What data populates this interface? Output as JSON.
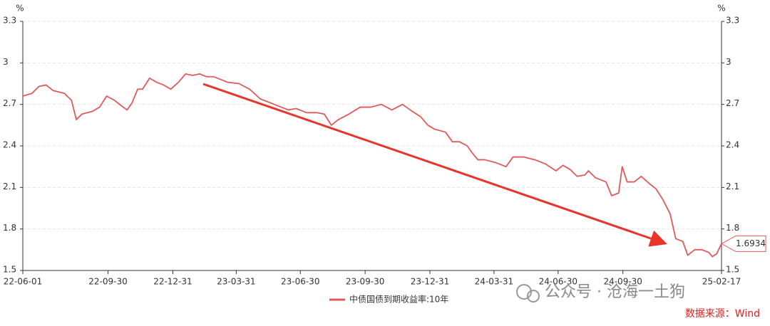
{
  "chart_data": {
    "type": "line",
    "y_unit": "%",
    "y2_unit": "%",
    "x": [
      "22-06-01",
      "22-06-14",
      "22-06-24",
      "22-07-04",
      "22-07-14",
      "22-07-30",
      "22-08-09",
      "22-08-16",
      "22-08-24",
      "22-09-08",
      "22-09-18",
      "22-09-28",
      "22-10-09",
      "22-10-19",
      "22-10-27",
      "22-11-03",
      "22-11-11",
      "22-11-18",
      "22-11-28",
      "22-12-08",
      "22-12-18",
      "22-12-28",
      "23-01-08",
      "23-01-18",
      "23-01-28",
      "23-02-07",
      "23-02-17",
      "23-02-27",
      "23-03-09",
      "23-03-19",
      "23-04-04",
      "23-04-19",
      "23-05-04",
      "23-05-19",
      "23-06-03",
      "23-06-13",
      "23-06-24",
      "23-07-09",
      "23-07-24",
      "23-08-03",
      "23-08-13",
      "23-08-23",
      "23-09-07",
      "23-09-23",
      "23-10-08",
      "23-10-23",
      "23-11-07",
      "23-11-22",
      "23-12-03",
      "23-12-18",
      "23-12-28",
      "24-01-07",
      "24-01-22",
      "24-02-01",
      "24-02-11",
      "24-02-22",
      "24-02-29",
      "24-03-08",
      "24-03-18",
      "24-04-02",
      "24-04-17",
      "24-04-27",
      "24-05-12",
      "24-05-28",
      "24-06-12",
      "24-06-27",
      "24-07-07",
      "24-07-17",
      "24-07-27",
      "24-08-07",
      "24-08-12",
      "24-08-22",
      "24-09-06",
      "24-09-14",
      "24-09-24",
      "24-09-29",
      "24-10-06",
      "24-10-16",
      "24-10-26",
      "24-11-06",
      "24-11-16",
      "24-11-26",
      "24-12-06",
      "24-12-14",
      "24-12-24",
      "24-12-31",
      "25-01-10",
      "25-01-20",
      "25-01-30",
      "25-02-04",
      "25-02-10",
      "25-02-17"
    ],
    "series": [
      {
        "name": "中债国债到期收益率:10年",
        "color": "#e05a5a",
        "values": [
          2.76,
          2.78,
          2.83,
          2.84,
          2.8,
          2.78,
          2.73,
          2.59,
          2.63,
          2.65,
          2.68,
          2.76,
          2.73,
          2.69,
          2.66,
          2.71,
          2.81,
          2.81,
          2.89,
          2.86,
          2.84,
          2.81,
          2.86,
          2.92,
          2.91,
          2.92,
          2.9,
          2.9,
          2.88,
          2.86,
          2.85,
          2.81,
          2.74,
          2.71,
          2.68,
          2.66,
          2.67,
          2.64,
          2.64,
          2.63,
          2.55,
          2.59,
          2.63,
          2.68,
          2.68,
          2.7,
          2.66,
          2.7,
          2.66,
          2.61,
          2.55,
          2.52,
          2.5,
          2.43,
          2.43,
          2.4,
          2.35,
          2.3,
          2.3,
          2.28,
          2.25,
          2.32,
          2.32,
          2.3,
          2.27,
          2.22,
          2.26,
          2.23,
          2.18,
          2.19,
          2.22,
          2.17,
          2.14,
          2.04,
          2.06,
          2.25,
          2.14,
          2.14,
          2.18,
          2.13,
          2.09,
          2.01,
          1.91,
          1.73,
          1.71,
          1.61,
          1.65,
          1.65,
          1.63,
          1.6,
          1.62,
          1.6934
        ]
      }
    ],
    "xlim": [
      "22-06-01",
      "25-02-17"
    ],
    "xticks": [
      "22-06-01",
      "22-09-30",
      "22-12-31",
      "23-03-31",
      "23-06-30",
      "23-09-30",
      "23-12-31",
      "24-03-31",
      "24-06-30",
      "24-09-30",
      "25-02-17"
    ],
    "ylim": [
      1.5,
      3.3
    ],
    "yticks": [
      1.5,
      1.8,
      2.1,
      2.4,
      2.7,
      3,
      3.3
    ],
    "y2lim": [
      1.5,
      3.3
    ],
    "y2ticks": [
      1.5,
      1.8,
      2.1,
      2.4,
      2.7,
      3,
      3.3
    ],
    "grid": true,
    "watermark": "公众号 · 沧海一土狗",
    "source": "数据来源：Wind"
  }
}
